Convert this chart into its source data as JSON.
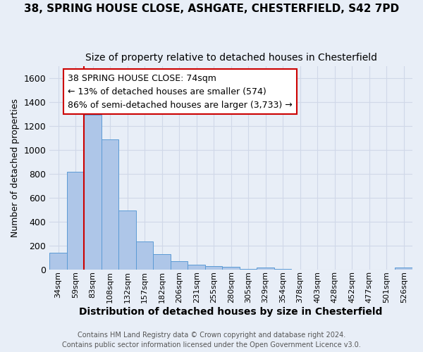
{
  "title_line1": "38, SPRING HOUSE CLOSE, ASHGATE, CHESTERFIELD, S42 7PD",
  "title_line2": "Size of property relative to detached houses in Chesterfield",
  "xlabel": "Distribution of detached houses by size in Chesterfield",
  "ylabel": "Number of detached properties",
  "footer_line1": "Contains HM Land Registry data © Crown copyright and database right 2024.",
  "footer_line2": "Contains public sector information licensed under the Open Government Licence v3.0.",
  "bar_labels": [
    "34sqm",
    "59sqm",
    "83sqm",
    "108sqm",
    "132sqm",
    "157sqm",
    "182sqm",
    "206sqm",
    "231sqm",
    "255sqm",
    "280sqm",
    "305sqm",
    "329sqm",
    "354sqm",
    "378sqm",
    "403sqm",
    "428sqm",
    "452sqm",
    "477sqm",
    "501sqm",
    "526sqm"
  ],
  "bar_heights": [
    140,
    815,
    1295,
    1090,
    495,
    232,
    130,
    68,
    38,
    28,
    18,
    5,
    15,
    3,
    0,
    0,
    0,
    0,
    0,
    0,
    15
  ],
  "bar_color": "#aec6e8",
  "bar_edge_color": "#5b9bd5",
  "vline_x": 1.5,
  "vline_color": "#cc0000",
  "annotation_text": "38 SPRING HOUSE CLOSE: 74sqm\n← 13% of detached houses are smaller (574)\n86% of semi-detached houses are larger (3,733) →",
  "ylim_max": 1700,
  "bg_color": "#e8eef7",
  "grid_color": "#d0d8e8",
  "title_fontsize": 11,
  "subtitle_fontsize": 10,
  "xlabel_fontsize": 10,
  "ylabel_fontsize": 9,
  "tick_fontsize": 9,
  "xtick_fontsize": 8,
  "ann_fontsize": 9,
  "footer_fontsize": 7
}
